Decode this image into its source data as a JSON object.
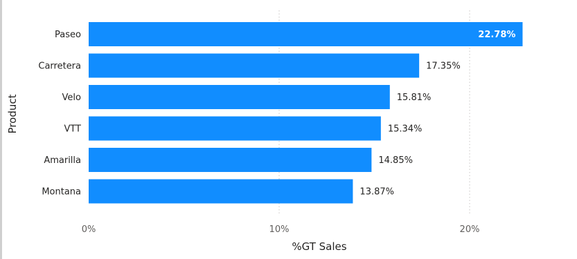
{
  "chart_data": {
    "type": "bar",
    "orientation": "horizontal",
    "categories": [
      "Paseo",
      "Carretera",
      "Velo",
      "VTT",
      "Amarilla",
      "Montana"
    ],
    "values": [
      22.78,
      17.35,
      15.81,
      15.34,
      14.85,
      13.87
    ],
    "data_labels": [
      "22.78%",
      "17.35%",
      "15.81%",
      "15.34%",
      "14.85%",
      "13.87%"
    ],
    "xlabel": "%GT Sales",
    "ylabel": "Product",
    "xlim": [
      0,
      25
    ],
    "x_ticks": [
      0,
      10,
      20
    ],
    "x_tick_labels": [
      "0%",
      "10%",
      "20%"
    ],
    "grid": "vertical dotted",
    "colors": {
      "bar": "#118DFF",
      "grid": "#c8c6c4"
    }
  }
}
